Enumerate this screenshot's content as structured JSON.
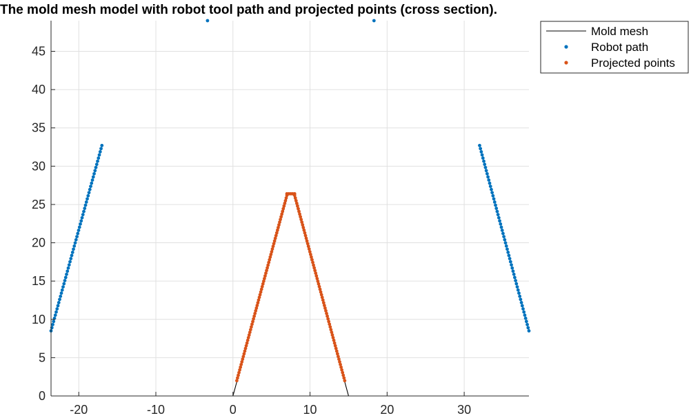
{
  "chart_data": {
    "type": "scatter",
    "title": "The mold mesh model with robot tool path and projected points (cross section).",
    "xlabel": "",
    "ylabel": "",
    "xlim": [
      -23.6,
      38.4
    ],
    "ylim": [
      0,
      49
    ],
    "xticks": [
      -20,
      -10,
      0,
      10,
      20,
      30
    ],
    "yticks": [
      0,
      5,
      10,
      15,
      20,
      25,
      30,
      35,
      40,
      45
    ],
    "grid": true,
    "legend": {
      "placement": "outside-top-right",
      "entries": [
        "Mold mesh",
        "Robot path",
        "Projected points"
      ]
    },
    "colors": {
      "mold_mesh": "#000000",
      "robot_path": "#0072BD",
      "projected_points": "#D95319",
      "grid": "#e0e0e0",
      "axes": "#262626"
    },
    "series": [
      {
        "name": "Mold mesh",
        "kind": "line",
        "x": [
          0,
          7.1,
          7.3,
          7.5,
          7.7,
          7.9,
          15,
          0
        ],
        "y": [
          0,
          26.2,
          26.35,
          26.4,
          26.35,
          26.2,
          0,
          0
        ]
      },
      {
        "name": "Robot path",
        "kind": "markers",
        "segments": [
          {
            "x0": -23.6,
            "y0": 8.5,
            "x1": -17.0,
            "y1": 32.7,
            "n": 60
          },
          {
            "x0": 32.0,
            "y0": 32.7,
            "x1": 38.4,
            "y1": 8.5,
            "n": 60
          }
        ],
        "points": [
          {
            "x": -3.3,
            "y": 49.0
          },
          {
            "x": 18.3,
            "y": 49.0
          }
        ]
      },
      {
        "name": "Projected points",
        "kind": "markers",
        "segments": [
          {
            "x0": 0.5,
            "y0": 2.0,
            "x1": 7.0,
            "y1": 26.2,
            "n": 70
          },
          {
            "x0": 7.0,
            "y0": 26.4,
            "x1": 8.0,
            "y1": 26.4,
            "n": 5
          },
          {
            "x0": 8.0,
            "y0": 26.2,
            "x1": 14.5,
            "y1": 2.0,
            "n": 70
          }
        ]
      }
    ]
  }
}
